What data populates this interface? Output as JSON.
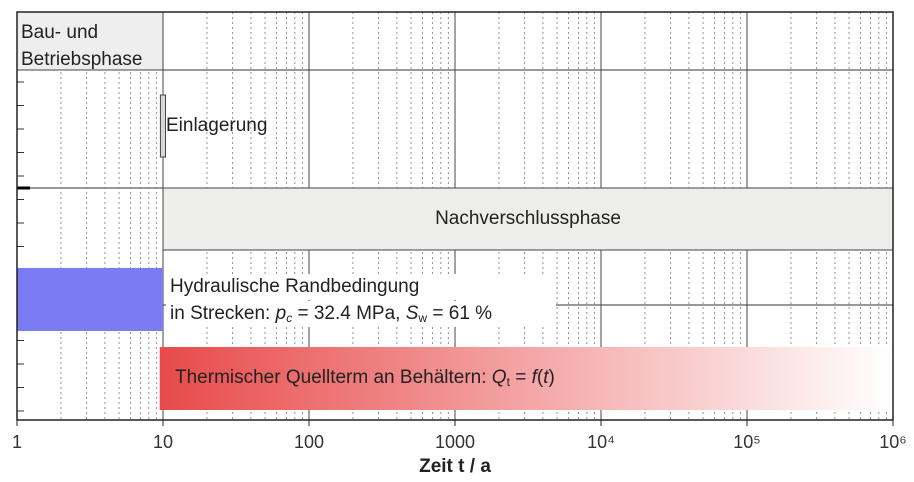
{
  "chart_data": {
    "type": "timeline",
    "x_label": "Zeit  t / a",
    "xlim": [
      1,
      1000000
    ],
    "log_x": true,
    "xticks": [
      1,
      10,
      100,
      1000,
      {
        "value": 10000,
        "label": "10⁴"
      },
      {
        "value": 100000,
        "label": "10⁵"
      },
      {
        "value": 1000000,
        "label": "10⁶"
      }
    ],
    "grid": true,
    "tasks": [
      {
        "lines": [
          [
            {
              "text": "Bau- und"
            }
          ],
          [
            {
              "text": "Betriebsphase"
            }
          ]
        ],
        "start": 1,
        "end": 10,
        "color": "#eeeeee"
      },
      {
        "lines": [
          [
            {
              "text": "Einlagerung"
            }
          ]
        ],
        "start": 9.6,
        "end": 10.4,
        "color": "#d8d8d8"
      },
      {
        "lines": [
          [
            {
              "text": "Nachverschlussphase"
            }
          ]
        ],
        "start": 10,
        "end": 1000000,
        "color": "#ededeb"
      },
      {
        "lines": [
          [
            {
              "text": "Hydraulische Randbedingung"
            }
          ],
          [
            {
              "text": "in Strecken: "
            },
            {
              "text": "p",
              "italic": true
            },
            {
              "text": "c",
              "italic": true,
              "sub": true
            },
            {
              "text": " = 32.4 MPa, "
            },
            {
              "text": "S",
              "italic": true
            },
            {
              "text": "w",
              "sub": true
            },
            {
              "text": " = 61 %"
            }
          ]
        ],
        "start": 1,
        "end": 10,
        "color": "#7b7bf4"
      },
      {
        "lines": [
          [
            {
              "text": "Thermischer Quellterm an Behältern: "
            },
            {
              "text": "Q",
              "italic": true
            },
            {
              "text": "t",
              "sub": true
            },
            {
              "text": " = "
            },
            {
              "text": "f",
              "italic": true
            },
            {
              "text": "("
            },
            {
              "text": "t",
              "italic": true
            },
            {
              "text": ")"
            }
          ]
        ],
        "start": 9.5,
        "end": 1000000,
        "color": "#e84a4a",
        "color_end": "#ffffff"
      }
    ]
  }
}
